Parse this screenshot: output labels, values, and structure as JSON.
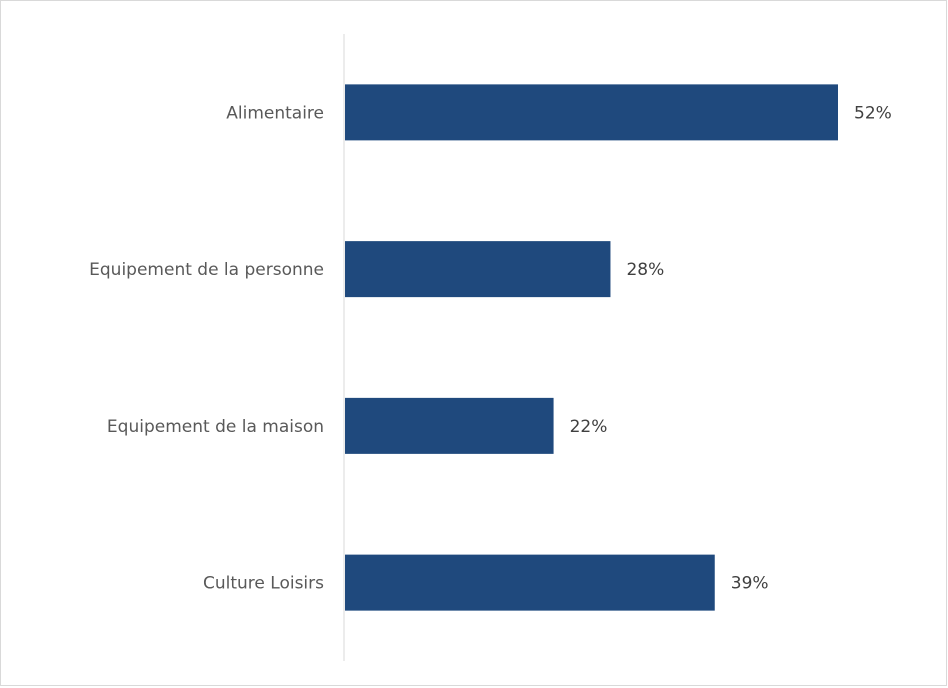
{
  "chart_data": {
    "type": "bar",
    "orientation": "horizontal",
    "categories": [
      "Alimentaire",
      "Equipement de la personne",
      "Equipement de la maison",
      "Culture Loisirs"
    ],
    "values": [
      52,
      28,
      22,
      39
    ],
    "value_labels": [
      "52%",
      "28%",
      "22%",
      "39%"
    ],
    "unit": "%",
    "xlim": [
      0,
      55
    ],
    "title": "",
    "xlabel": "",
    "ylabel": "",
    "grid": false,
    "legend": "none",
    "bar_color": "#1f497d",
    "axis_color": "#d9d9d9"
  }
}
